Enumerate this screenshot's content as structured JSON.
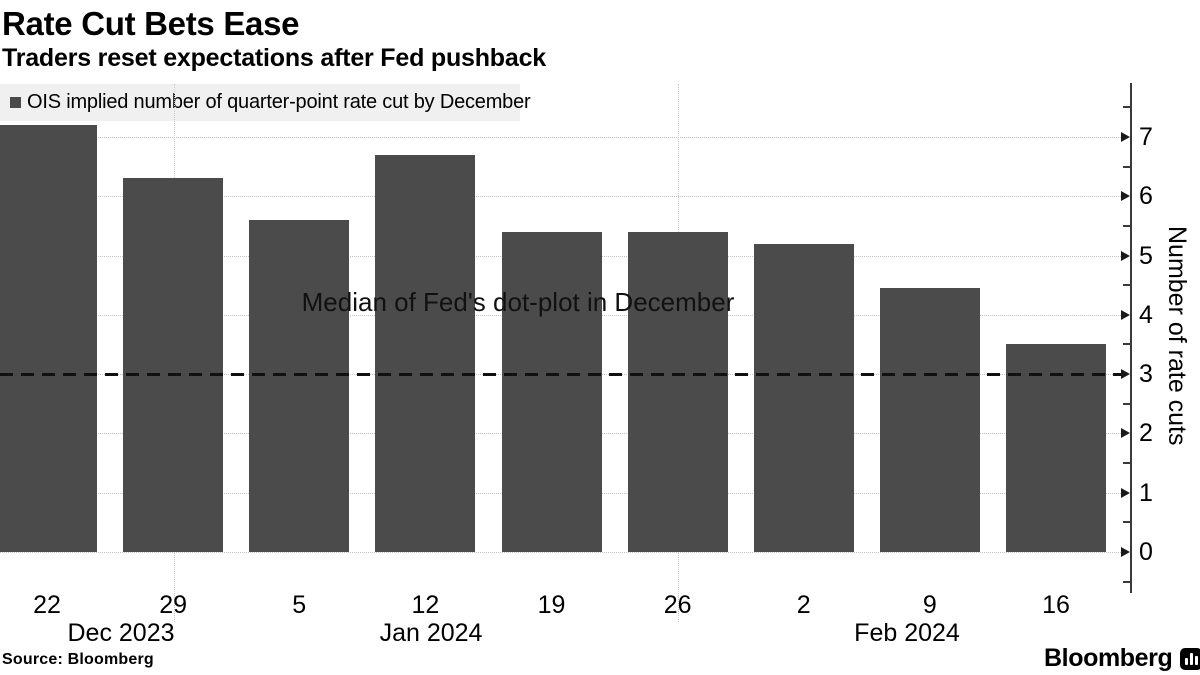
{
  "chart_data": {
    "type": "bar",
    "title": "Rate Cut Bets Ease",
    "subtitle": "Traders reset expectations after Fed pushback",
    "series": [
      {
        "name": "OIS implied number of quarter-point rate cut by December",
        "color": "#4b4b4b",
        "values": [
          7.2,
          6.3,
          5.6,
          6.7,
          5.4,
          5.4,
          5.2,
          4.45,
          3.5
        ]
      }
    ],
    "categories": [
      "22",
      "29",
      "5",
      "12",
      "19",
      "26",
      "2",
      "9",
      "16"
    ],
    "month_labels": [
      "Dec 2023",
      "Jan 2024",
      "Feb 2024"
    ],
    "y_ticks": [
      0,
      1,
      2,
      3,
      4,
      5,
      6,
      7
    ],
    "ylim": [
      -0.75,
      7.9
    ],
    "ylabel": "Number of rate cuts",
    "xlabel": "",
    "legend_position": "top-left",
    "grid": {
      "horizontal": "dotted",
      "vertical": "dotted month separators"
    },
    "reference_line": {
      "value": 3,
      "style": "dashed",
      "label": "Median of Fed's dot-plot in December"
    }
  },
  "colors": {
    "bar": "#4b4b4b",
    "grid": "#c3c3c3",
    "axis": "#3a3a3a",
    "reference_line": "#111111",
    "legend_background": "#f0f0f0",
    "background": "#ffffff"
  },
  "footer": {
    "source": "Source: Bloomberg",
    "logo_text": "Bloomberg",
    "logo_icon": "bar-chart-icon"
  }
}
